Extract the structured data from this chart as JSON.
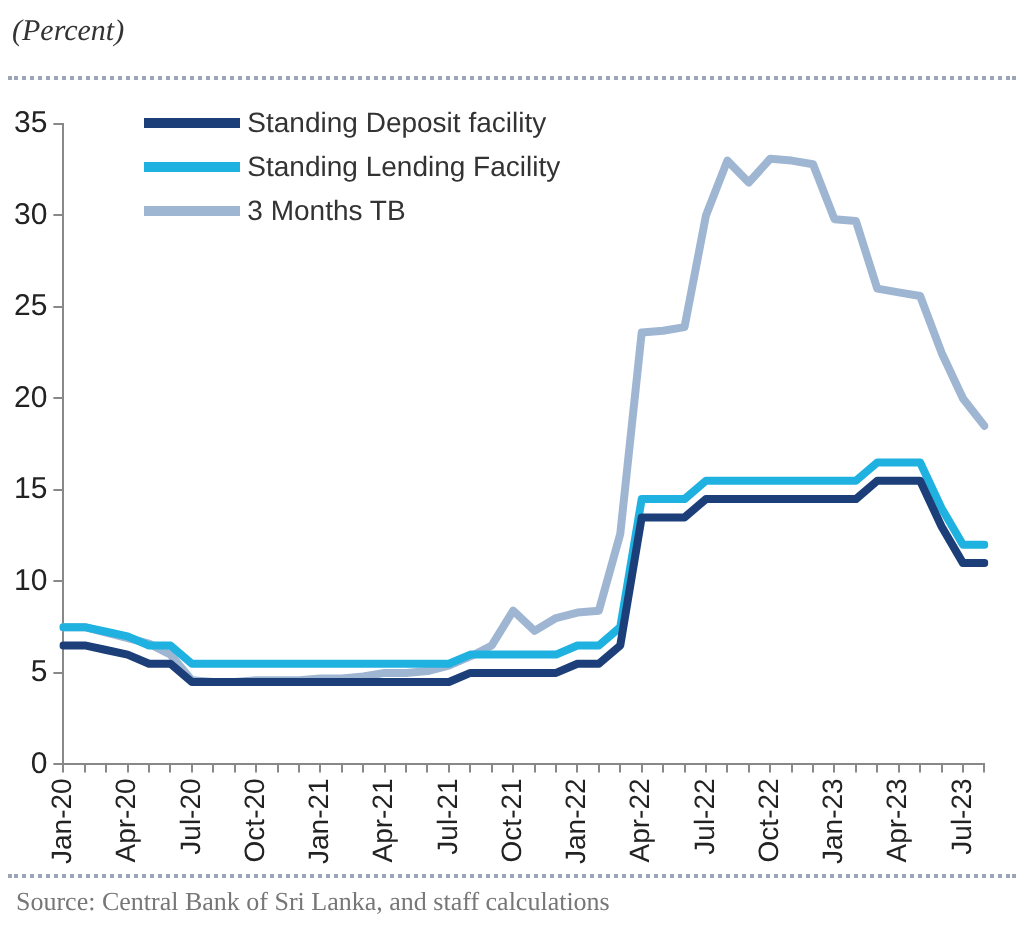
{
  "chart_data": {
    "type": "line",
    "title": "(Percent)",
    "categories": [
      "Jan-20",
      null,
      null,
      "Apr-20",
      null,
      null,
      "Jul-20",
      null,
      null,
      "Oct-20",
      null,
      null,
      "Jan-21",
      null,
      null,
      "Apr-21",
      null,
      null,
      "Jul-21",
      null,
      null,
      "Oct-21",
      null,
      null,
      "Jan-22",
      null,
      null,
      "Apr-22",
      null,
      null,
      "Jul-22",
      null,
      null,
      "Oct-22",
      null,
      null,
      "Jan-23",
      null,
      null,
      "Apr-23",
      null,
      null,
      "Jul-23",
      null
    ],
    "series": [
      {
        "name": "Standing Deposit facility",
        "color": "#1c3f7a",
        "values": [
          6.5,
          6.5,
          6.25,
          6,
          5.5,
          5.5,
          4.5,
          4.5,
          4.5,
          4.5,
          4.5,
          4.5,
          4.5,
          4.5,
          4.5,
          4.5,
          4.5,
          4.5,
          4.5,
          5,
          5,
          5,
          5,
          5,
          5.5,
          5.5,
          6.5,
          13.5,
          13.5,
          13.5,
          14.5,
          14.5,
          14.5,
          14.5,
          14.5,
          14.5,
          14.5,
          14.5,
          15.5,
          15.5,
          15.5,
          13,
          11,
          11
        ]
      },
      {
        "name": "Standing Lending Facility",
        "color": "#1fb2e0",
        "values": [
          7.5,
          7.5,
          7.25,
          7,
          6.5,
          6.5,
          5.5,
          5.5,
          5.5,
          5.5,
          5.5,
          5.5,
          5.5,
          5.5,
          5.5,
          5.5,
          5.5,
          5.5,
          5.5,
          6,
          6,
          6,
          6,
          6,
          6.5,
          6.5,
          7.5,
          14.5,
          14.5,
          14.5,
          15.5,
          15.5,
          15.5,
          15.5,
          15.5,
          15.5,
          15.5,
          15.5,
          16.5,
          16.5,
          16.5,
          14,
          12,
          12
        ]
      },
      {
        "name": "3 Months TB",
        "color": "#9fb6d3",
        "values": [
          7.5,
          7.5,
          7.2,
          6.9,
          6.6,
          6,
          4.6,
          4.5,
          4.5,
          4.6,
          4.6,
          4.6,
          4.7,
          4.7,
          4.8,
          5,
          5,
          5.1,
          5.4,
          5.9,
          6.5,
          8.4,
          7.3,
          8,
          8.3,
          8.4,
          12.6,
          23.6,
          23.7,
          23.9,
          30,
          33,
          31.8,
          33.1,
          33,
          32.8,
          29.8,
          29.7,
          26,
          25.8,
          25.6,
          22.5,
          20,
          18.5
        ]
      }
    ],
    "ylim": [
      0,
      35
    ],
    "yticks": [
      0,
      5,
      10,
      15,
      20,
      25,
      30,
      35
    ],
    "grid": false,
    "legend": "top left",
    "marker": "none",
    "line_style": "solid",
    "annotations": [
      "Source: Central Bank of Sri Lanka, and staff calculations"
    ]
  }
}
